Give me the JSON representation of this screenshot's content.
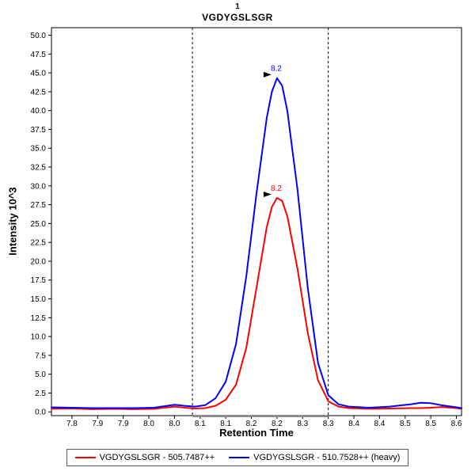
{
  "title": {
    "line1": "1",
    "line2": "VGDYGSLSGR"
  },
  "axes": {
    "x_label": "Retention Time",
    "y_label": "Intensity 10^3"
  },
  "legend": {
    "entries": [
      {
        "label": "VGDYGSLSGR - 505.7487++",
        "color": "#ff0000"
      },
      {
        "label": "VGDYGSLSGR - 510.7528++ (heavy)",
        "color": "#0000ff"
      }
    ]
  },
  "chart_data": {
    "type": "line",
    "title": "1 VGDYGSLSGR",
    "xlabel": "Retention Time",
    "ylabel": "Intensity 10^3",
    "xlim": [
      7.76,
      8.56
    ],
    "ylim": [
      -0.5,
      51.0
    ],
    "grid": false,
    "legend_position": "bottom",
    "x_ticks": {
      "values": [
        7.8,
        7.85,
        7.9,
        7.95,
        8.0,
        8.05,
        8.1,
        8.15,
        8.2,
        8.25,
        8.3,
        8.35,
        8.4,
        8.45,
        8.5,
        8.55
      ],
      "labels": [
        "7.8",
        "7.9",
        "7.9",
        "8.0",
        "8.0",
        "8.1",
        "8.1",
        "8.2",
        "8.2",
        "8.3",
        "8.3",
        "8.4",
        "8.4",
        "8.5",
        "8.5",
        "8.6"
      ]
    },
    "y_ticks": {
      "values": [
        0,
        2.5,
        5,
        7.5,
        10,
        12.5,
        15,
        17.5,
        20,
        22.5,
        25,
        27.5,
        30,
        32.5,
        35,
        37.5,
        40,
        42.5,
        45,
        47.5,
        50
      ],
      "labels": [
        "0.0",
        "2.5",
        "5.0",
        "7.5",
        "10.0",
        "12.5",
        "15.0",
        "17.5",
        "20.0",
        "22.5",
        "25.0",
        "27.5",
        "30.0",
        "32.5",
        "35.0",
        "37.5",
        "40.0",
        "42.5",
        "45.0",
        "47.5",
        "50.0"
      ]
    },
    "boundaries": [
      8.035,
      8.3
    ],
    "x": [
      7.76,
      7.8,
      7.84,
      7.88,
      7.92,
      7.96,
      8.0,
      8.02,
      8.04,
      8.06,
      8.08,
      8.1,
      8.12,
      8.14,
      8.16,
      8.18,
      8.19,
      8.2,
      8.21,
      8.22,
      8.24,
      8.26,
      8.28,
      8.3,
      8.32,
      8.34,
      8.38,
      8.42,
      8.46,
      8.48,
      8.5,
      8.52,
      8.55,
      8.56
    ],
    "series": [
      {
        "name": "VGDYGSLSGR - 505.7487++",
        "color": "#ff0000",
        "values": [
          0.4,
          0.45,
          0.35,
          0.4,
          0.35,
          0.4,
          0.7,
          0.55,
          0.45,
          0.5,
          0.8,
          1.6,
          3.6,
          8.5,
          16.5,
          24.5,
          27.2,
          28.4,
          28.0,
          26.0,
          19.0,
          10.5,
          4.2,
          1.4,
          0.7,
          0.5,
          0.4,
          0.45,
          0.5,
          0.5,
          0.55,
          0.65,
          0.5,
          0.4
        ],
        "annotation": {
          "x": 8.2,
          "y": 28.4,
          "label": "8.2"
        }
      },
      {
        "name": "VGDYGSLSGR - 510.7528++ (heavy)",
        "color": "#0000ff",
        "values": [
          0.6,
          0.55,
          0.5,
          0.5,
          0.5,
          0.55,
          0.95,
          0.8,
          0.7,
          0.9,
          1.8,
          4.0,
          9.0,
          18.0,
          29.0,
          39.0,
          42.5,
          44.3,
          43.3,
          40.0,
          29.5,
          16.5,
          6.5,
          2.2,
          1.0,
          0.7,
          0.55,
          0.7,
          1.0,
          1.2,
          1.15,
          0.9,
          0.6,
          0.5
        ],
        "annotation": {
          "x": 8.2,
          "y": 44.3,
          "label": "8.2"
        }
      }
    ]
  }
}
